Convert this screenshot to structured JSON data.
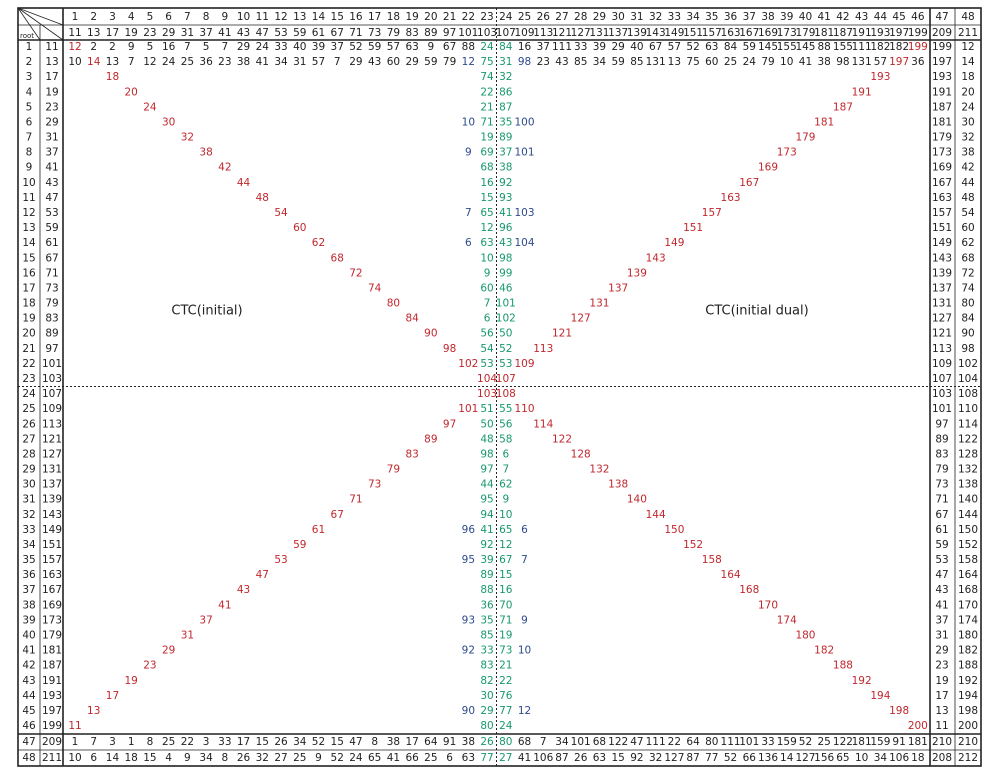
{
  "corner": {
    "root": "root"
  },
  "palette": {
    "diagonal": "#c1272d",
    "center": "#17996b",
    "side": "#2d4a8e",
    "plain": "#222222"
  },
  "annotations": {
    "left": "CTC(initial)",
    "right": "CTC(initial dual)"
  },
  "header": {
    "j": [
      1,
      2,
      3,
      4,
      5,
      6,
      7,
      8,
      9,
      10,
      11,
      12,
      13,
      14,
      15,
      16,
      17,
      18,
      19,
      20,
      21,
      22,
      23,
      24,
      25,
      26,
      27,
      28,
      29,
      30,
      31,
      32,
      33,
      34,
      35,
      36,
      37,
      38,
      39,
      40,
      41,
      42,
      43,
      44,
      45,
      46,
      47,
      48
    ],
    "primes": [
      11,
      13,
      17,
      19,
      23,
      29,
      31,
      37,
      41,
      43,
      47,
      53,
      59,
      61,
      67,
      71,
      73,
      79,
      83,
      89,
      97,
      101,
      103,
      107,
      109,
      113,
      121,
      127,
      131,
      137,
      139,
      143,
      149,
      151,
      157,
      163,
      167,
      169,
      173,
      179,
      181,
      187,
      191,
      193,
      197,
      199,
      209,
      211
    ]
  },
  "rows": [
    {
      "i": 1,
      "root": 11,
      "cells": [
        12,
        2,
        2,
        9,
        5,
        16,
        7,
        5,
        7,
        29,
        24,
        33,
        40,
        39,
        37,
        52,
        59,
        57,
        63,
        9,
        67,
        88,
        24,
        84,
        16,
        37,
        111,
        33,
        39,
        29,
        40,
        67,
        57,
        52,
        63,
        84,
        59,
        145,
        155,
        145,
        88,
        155,
        111,
        182,
        182,
        199,
        199,
        12
      ]
    },
    {
      "i": 2,
      "root": 13,
      "cells": [
        10,
        14,
        13,
        7,
        12,
        24,
        25,
        36,
        23,
        38,
        41,
        34,
        31,
        57,
        7,
        29,
        43,
        60,
        29,
        59,
        79,
        12,
        75,
        31,
        98,
        23,
        43,
        85,
        34,
        59,
        85,
        131,
        13,
        75,
        60,
        25,
        24,
        79,
        10,
        41,
        38,
        98,
        131,
        57,
        197,
        36,
        197,
        14
      ]
    },
    {
      "i": 3,
      "root": 17,
      "cells": {
        "3": 18,
        "23": 74,
        "24": 32,
        "44": 193,
        "47": 193,
        "48": 18
      }
    },
    {
      "i": 4,
      "root": 19,
      "cells": {
        "4": 20,
        "23": 22,
        "24": 86,
        "43": 191,
        "47": 191,
        "48": 20
      }
    },
    {
      "i": 5,
      "root": 23,
      "cells": {
        "5": 24,
        "23": 21,
        "24": 87,
        "42": 187,
        "47": 187,
        "48": 24
      }
    },
    {
      "i": 6,
      "root": 29,
      "cells": {
        "6": 30,
        "22": 10,
        "23": 71,
        "24": 35,
        "25": 100,
        "41": 181,
        "47": 181,
        "48": 30
      }
    },
    {
      "i": 7,
      "root": 31,
      "cells": {
        "7": 32,
        "23": 19,
        "24": 89,
        "40": 179,
        "47": 179,
        "48": 32
      }
    },
    {
      "i": 8,
      "root": 37,
      "cells": {
        "8": 38,
        "22": 9,
        "23": 69,
        "24": 37,
        "25": 101,
        "39": 173,
        "47": 173,
        "48": 38
      }
    },
    {
      "i": 9,
      "root": 41,
      "cells": {
        "9": 42,
        "23": 68,
        "24": 38,
        "38": 169,
        "47": 169,
        "48": 42
      }
    },
    {
      "i": 10,
      "root": 43,
      "cells": {
        "10": 44,
        "23": 16,
        "24": 92,
        "37": 167,
        "47": 167,
        "48": 44
      }
    },
    {
      "i": 11,
      "root": 47,
      "cells": {
        "11": 48,
        "23": 15,
        "24": 93,
        "36": 163,
        "47": 163,
        "48": 48
      }
    },
    {
      "i": 12,
      "root": 53,
      "cells": {
        "12": 54,
        "22": 7,
        "23": 65,
        "24": 41,
        "25": 103,
        "35": 157,
        "47": 157,
        "48": 54
      }
    },
    {
      "i": 13,
      "root": 59,
      "cells": {
        "13": 60,
        "23": 12,
        "24": 96,
        "34": 151,
        "47": 151,
        "48": 60
      }
    },
    {
      "i": 14,
      "root": 61,
      "cells": {
        "14": 62,
        "22": 6,
        "23": 63,
        "24": 43,
        "25": 104,
        "33": 149,
        "47": 149,
        "48": 62
      }
    },
    {
      "i": 15,
      "root": 67,
      "cells": {
        "15": 68,
        "23": 10,
        "24": 98,
        "32": 143,
        "47": 143,
        "48": 68
      }
    },
    {
      "i": 16,
      "root": 71,
      "cells": {
        "16": 72,
        "23": 9,
        "24": 99,
        "31": 139,
        "47": 139,
        "48": 72
      }
    },
    {
      "i": 17,
      "root": 73,
      "cells": {
        "17": 74,
        "23": 60,
        "24": 46,
        "30": 137,
        "47": 137,
        "48": 74
      }
    },
    {
      "i": 18,
      "root": 79,
      "cells": {
        "18": 80,
        "23": 7,
        "24": 101,
        "29": 131,
        "47": 131,
        "48": 80
      }
    },
    {
      "i": 19,
      "root": 83,
      "cells": {
        "19": 84,
        "23": 6,
        "24": 102,
        "28": 127,
        "47": 127,
        "48": 84
      }
    },
    {
      "i": 20,
      "root": 89,
      "cells": {
        "20": 90,
        "23": 56,
        "24": 50,
        "27": 121,
        "47": 121,
        "48": 90
      }
    },
    {
      "i": 21,
      "root": 97,
      "cells": {
        "21": 98,
        "23": 54,
        "24": 52,
        "26": 113,
        "47": 113,
        "48": 98
      }
    },
    {
      "i": 22,
      "root": 101,
      "cells": {
        "22": 102,
        "23": 53,
        "24": 53,
        "25": 109,
        "47": 109,
        "48": 102
      }
    },
    {
      "i": 23,
      "root": 103,
      "cells": {
        "23": 104,
        "24": 107,
        "47": 107,
        "48": 104
      }
    },
    {
      "i": 24,
      "root": 107,
      "cells": {
        "23": 103,
        "24": 108,
        "47": 103,
        "48": 108
      }
    },
    {
      "i": 25,
      "root": 109,
      "cells": {
        "22": 101,
        "23": 51,
        "24": 55,
        "25": 110,
        "47": 101,
        "48": 110
      }
    },
    {
      "i": 26,
      "root": 113,
      "cells": {
        "21": 97,
        "23": 50,
        "24": 56,
        "26": 114,
        "47": 97,
        "48": 114
      }
    },
    {
      "i": 27,
      "root": 121,
      "cells": {
        "20": 89,
        "23": 48,
        "24": 58,
        "27": 122,
        "47": 89,
        "48": 122
      }
    },
    {
      "i": 28,
      "root": 127,
      "cells": {
        "19": 83,
        "23": 98,
        "24": 6,
        "28": 128,
        "47": 83,
        "48": 128
      }
    },
    {
      "i": 29,
      "root": 131,
      "cells": {
        "18": 79,
        "23": 97,
        "24": 7,
        "29": 132,
        "47": 79,
        "48": 132
      }
    },
    {
      "i": 30,
      "root": 137,
      "cells": {
        "17": 73,
        "23": 44,
        "24": 62,
        "30": 138,
        "47": 73,
        "48": 138
      }
    },
    {
      "i": 31,
      "root": 139,
      "cells": {
        "16": 71,
        "23": 95,
        "24": 9,
        "31": 140,
        "47": 71,
        "48": 140
      }
    },
    {
      "i": 32,
      "root": 143,
      "cells": {
        "15": 67,
        "23": 94,
        "24": 10,
        "32": 144,
        "47": 67,
        "48": 144
      }
    },
    {
      "i": 33,
      "root": 149,
      "cells": {
        "14": 61,
        "22": 96,
        "23": 41,
        "24": 65,
        "25": 6,
        "33": 150,
        "47": 61,
        "48": 150
      }
    },
    {
      "i": 34,
      "root": 151,
      "cells": {
        "13": 59,
        "23": 92,
        "24": 12,
        "34": 152,
        "47": 59,
        "48": 152
      }
    },
    {
      "i": 35,
      "root": 157,
      "cells": {
        "12": 53,
        "22": 95,
        "23": 39,
        "24": 67,
        "25": 7,
        "35": 158,
        "47": 53,
        "48": 158
      }
    },
    {
      "i": 36,
      "root": 163,
      "cells": {
        "11": 47,
        "23": 89,
        "24": 15,
        "36": 164,
        "47": 47,
        "48": 164
      }
    },
    {
      "i": 37,
      "root": 167,
      "cells": {
        "10": 43,
        "23": 88,
        "24": 16,
        "37": 168,
        "47": 43,
        "48": 168
      }
    },
    {
      "i": 38,
      "root": 169,
      "cells": {
        "9": 41,
        "23": 36,
        "24": 70,
        "38": 170,
        "47": 41,
        "48": 170
      }
    },
    {
      "i": 39,
      "root": 173,
      "cells": {
        "8": 37,
        "22": 93,
        "23": 35,
        "24": 71,
        "25": 9,
        "39": 174,
        "47": 37,
        "48": 174
      }
    },
    {
      "i": 40,
      "root": 179,
      "cells": {
        "7": 31,
        "23": 85,
        "24": 19,
        "40": 180,
        "47": 31,
        "48": 180
      }
    },
    {
      "i": 41,
      "root": 181,
      "cells": {
        "6": 29,
        "22": 92,
        "23": 33,
        "24": 73,
        "25": 10,
        "41": 182,
        "47": 29,
        "48": 182
      }
    },
    {
      "i": 42,
      "root": 187,
      "cells": {
        "5": 23,
        "23": 83,
        "24": 21,
        "42": 188,
        "47": 23,
        "48": 188
      }
    },
    {
      "i": 43,
      "root": 191,
      "cells": {
        "4": 19,
        "23": 82,
        "24": 22,
        "43": 192,
        "47": 19,
        "48": 192
      }
    },
    {
      "i": 44,
      "root": 193,
      "cells": {
        "3": 17,
        "23": 30,
        "24": 76,
        "44": 194,
        "47": 17,
        "48": 194
      }
    },
    {
      "i": 45,
      "root": 197,
      "cells": {
        "2": 13,
        "22": 90,
        "23": 29,
        "24": 77,
        "25": 12,
        "45": 198,
        "47": 13,
        "48": 198
      }
    },
    {
      "i": 46,
      "root": 199,
      "cells": {
        "1": 11,
        "23": 80,
        "24": 24,
        "46": 200,
        "47": 11,
        "48": 200
      }
    },
    {
      "i": 47,
      "root": 209,
      "cells": [
        1,
        7,
        3,
        1,
        8,
        25,
        22,
        3,
        33,
        17,
        15,
        26,
        34,
        52,
        15,
        47,
        8,
        38,
        17,
        64,
        91,
        38,
        26,
        80,
        68,
        7,
        34,
        101,
        68,
        122,
        47,
        111,
        22,
        64,
        80,
        111,
        101,
        33,
        159,
        52,
        25,
        122,
        181,
        159,
        91,
        181,
        210,
        210
      ]
    },
    {
      "i": 48,
      "root": 211,
      "cells": [
        10,
        6,
        14,
        18,
        15,
        4,
        9,
        34,
        8,
        26,
        32,
        27,
        25,
        9,
        52,
        24,
        65,
        41,
        66,
        25,
        6,
        63,
        77,
        27,
        41,
        106,
        87,
        26,
        63,
        15,
        92,
        32,
        127,
        87,
        77,
        52,
        66,
        136,
        14,
        127,
        156,
        65,
        10,
        34,
        106,
        18,
        208,
        212
      ]
    }
  ]
}
